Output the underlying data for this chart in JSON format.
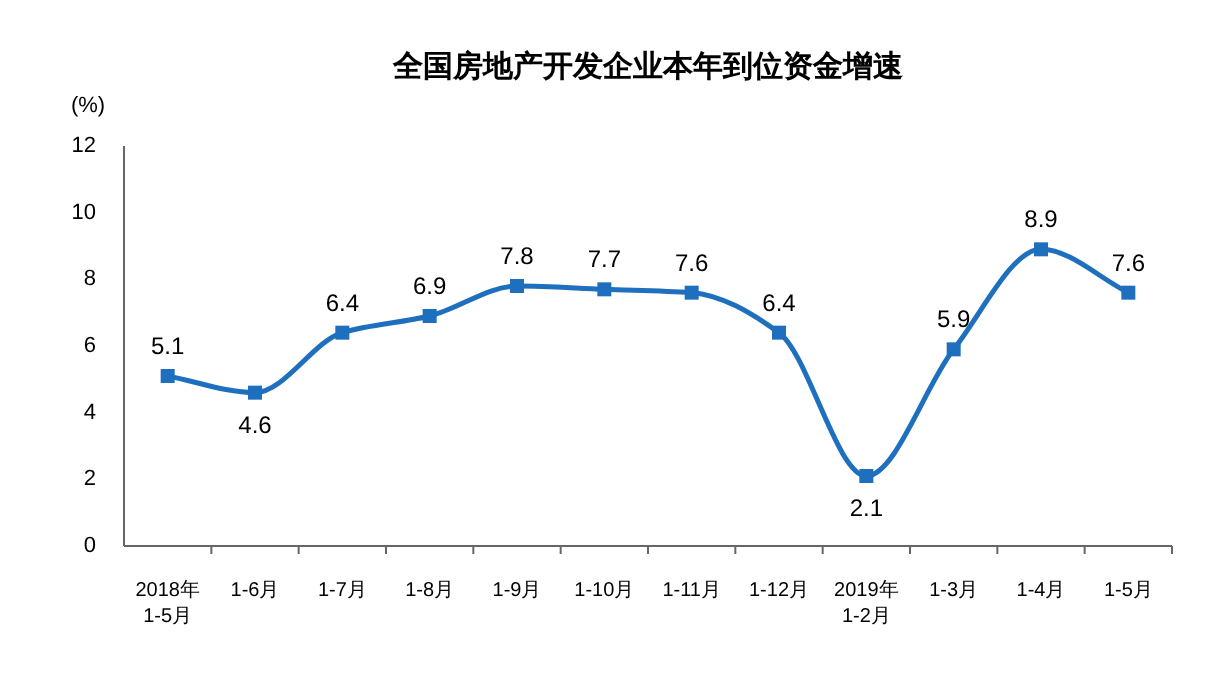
{
  "chart_data": {
    "type": "line",
    "title": "全国房地产开发企业本年到位资金增速",
    "ylabel": "(%)",
    "categories": [
      "2018年\n1-5月",
      "1-6月",
      "1-7月",
      "1-8月",
      "1-9月",
      "1-10月",
      "1-11月",
      "1-12月",
      "2019年\n1-2月",
      "1-3月",
      "1-4月",
      "1-5月"
    ],
    "series": [
      {
        "color": "#1f6fbf",
        "values": [
          5.1,
          4.6,
          6.4,
          6.9,
          7.8,
          7.7,
          7.6,
          6.4,
          2.1,
          5.9,
          8.9,
          7.6
        ]
      }
    ],
    "ylim": [
      0,
      12
    ],
    "yticks": [
      0,
      2,
      4,
      6,
      8,
      10,
      12
    ],
    "data_labels": true,
    "marker": "square",
    "line_style": "solid"
  }
}
